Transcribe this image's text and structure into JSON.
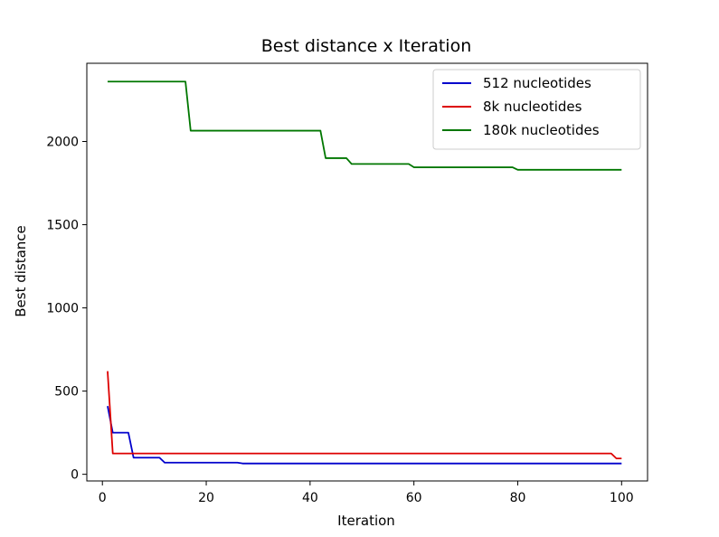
{
  "chart_data": {
    "type": "line",
    "title": "Best distance x Iteration",
    "xlabel": "Iteration",
    "ylabel": "Best distance",
    "xlim": [
      -3,
      105
    ],
    "ylim": [
      -40,
      2470
    ],
    "xticks": [
      0,
      20,
      40,
      60,
      80,
      100
    ],
    "yticks": [
      0,
      500,
      1000,
      1500,
      2000
    ],
    "grid": false,
    "legend_position": "upper-right",
    "series": [
      {
        "name": "512 nucleotides",
        "color": "#0000cc",
        "points": [
          [
            1,
            410
          ],
          [
            2,
            250
          ],
          [
            5,
            250
          ],
          [
            6,
            100
          ],
          [
            11,
            100
          ],
          [
            12,
            70
          ],
          [
            26,
            70
          ],
          [
            27,
            65
          ],
          [
            100,
            65
          ]
        ]
      },
      {
        "name": "8k nucleotides",
        "color": "#dd0000",
        "points": [
          [
            1,
            620
          ],
          [
            2,
            125
          ],
          [
            98,
            125
          ],
          [
            99,
            95
          ],
          [
            100,
            95
          ]
        ]
      },
      {
        "name": "180k nucleotides",
        "color": "#007700",
        "points": [
          [
            1,
            2360
          ],
          [
            16,
            2360
          ],
          [
            17,
            2065
          ],
          [
            42,
            2065
          ],
          [
            43,
            1900
          ],
          [
            47,
            1900
          ],
          [
            48,
            1865
          ],
          [
            59,
            1865
          ],
          [
            60,
            1845
          ],
          [
            79,
            1845
          ],
          [
            80,
            1830
          ],
          [
            100,
            1830
          ]
        ]
      }
    ]
  }
}
